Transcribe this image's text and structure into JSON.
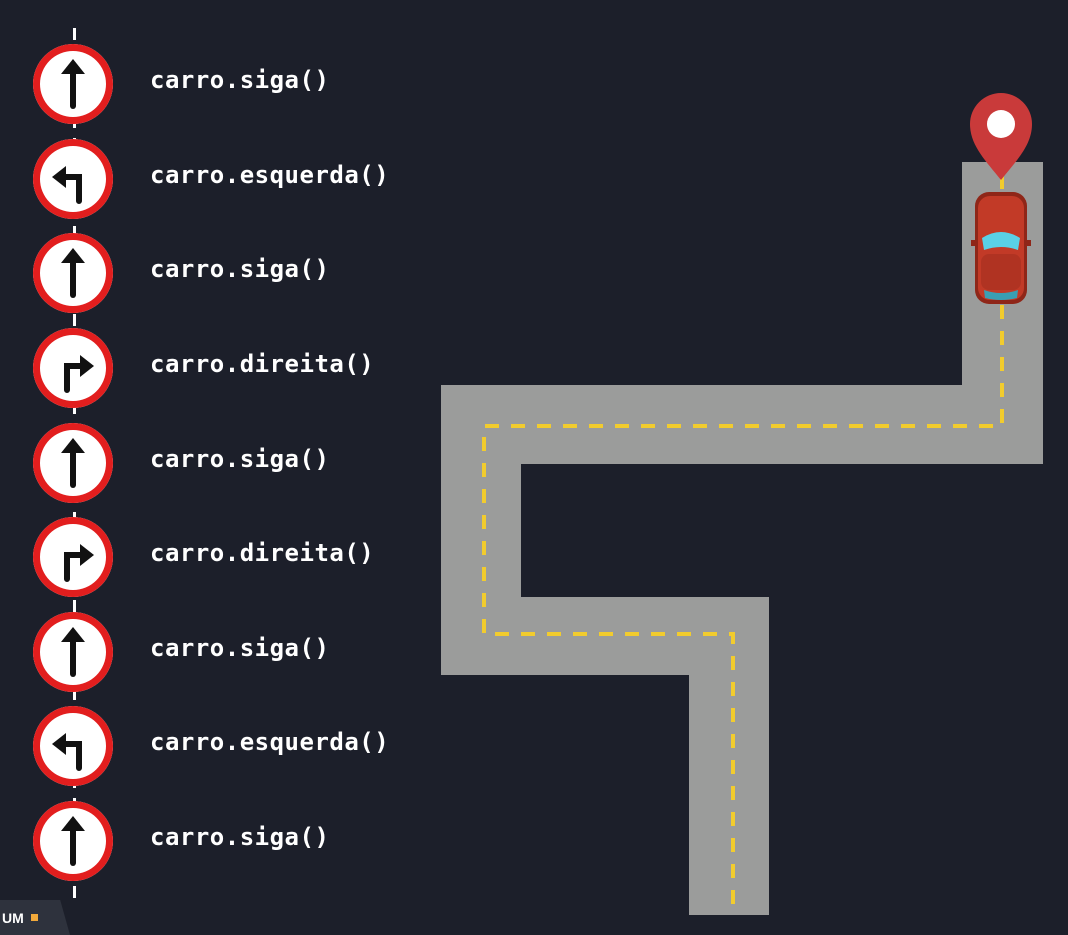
{
  "commands": [
    {
      "label": "carro.siga()",
      "arrow": "up-arrow"
    },
    {
      "label": "carro.esquerda()",
      "arrow": "turn-left-arrow"
    },
    {
      "label": "carro.siga()",
      "arrow": "up-arrow"
    },
    {
      "label": "carro.direita()",
      "arrow": "turn-right-arrow"
    },
    {
      "label": "carro.siga()",
      "arrow": "up-arrow"
    },
    {
      "label": "carro.direita()",
      "arrow": "turn-right-arrow"
    },
    {
      "label": "carro.siga()",
      "arrow": "up-arrow"
    },
    {
      "label": "carro.esquerda()",
      "arrow": "turn-left-arrow"
    },
    {
      "label": "carro.siga()",
      "arrow": "up-arrow"
    }
  ],
  "colors": {
    "background": "#1c1f2a",
    "road": "#9b9c9b",
    "lane_marking": "#f2cc2e",
    "sign_ring": "#e21e1e",
    "car": "#c23a27",
    "pin": "#c93a3a"
  },
  "logo": {
    "text": "UM"
  }
}
